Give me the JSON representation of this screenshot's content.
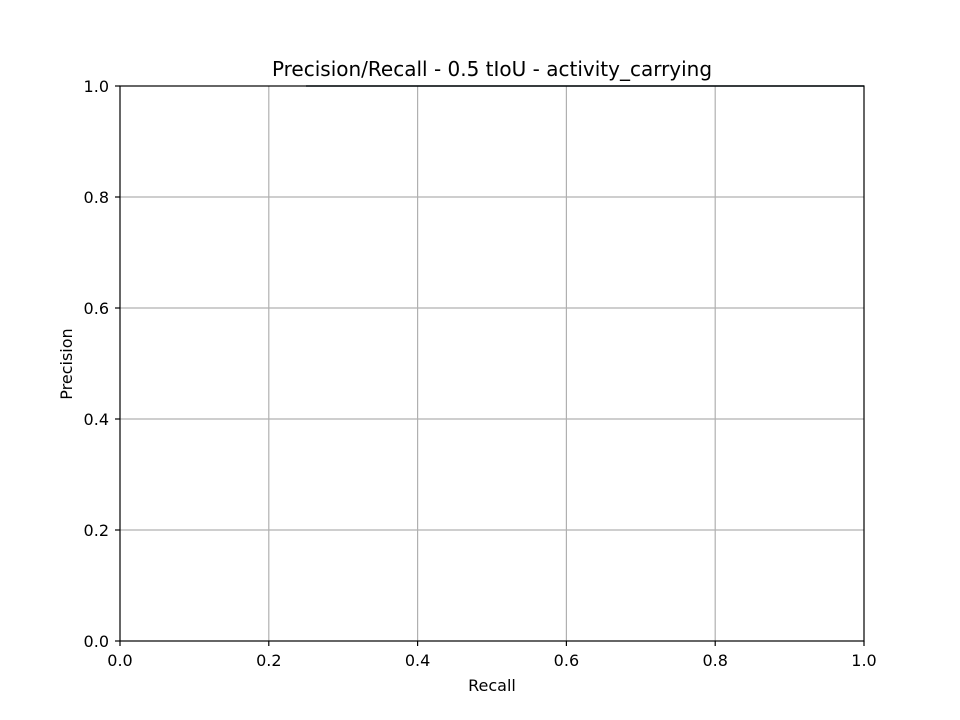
{
  "chart_data": {
    "type": "line",
    "title": "Precision/Recall - 0.5 tIoU - activity_carrying",
    "xlabel": "Recall",
    "ylabel": "Precision",
    "xlim": [
      0.0,
      1.0
    ],
    "ylim": [
      0.0,
      1.0
    ],
    "x_ticks": [
      "0.0",
      "0.2",
      "0.4",
      "0.6",
      "0.8",
      "1.0"
    ],
    "y_ticks": [
      "0.0",
      "0.2",
      "0.4",
      "0.6",
      "0.8",
      "1.0"
    ],
    "grid": true,
    "series": [
      {
        "color": "#1f2f3f",
        "points": [
          {
            "x": 0.25,
            "y": 1.0
          },
          {
            "x": 1.0,
            "y": 1.0
          }
        ]
      }
    ]
  }
}
